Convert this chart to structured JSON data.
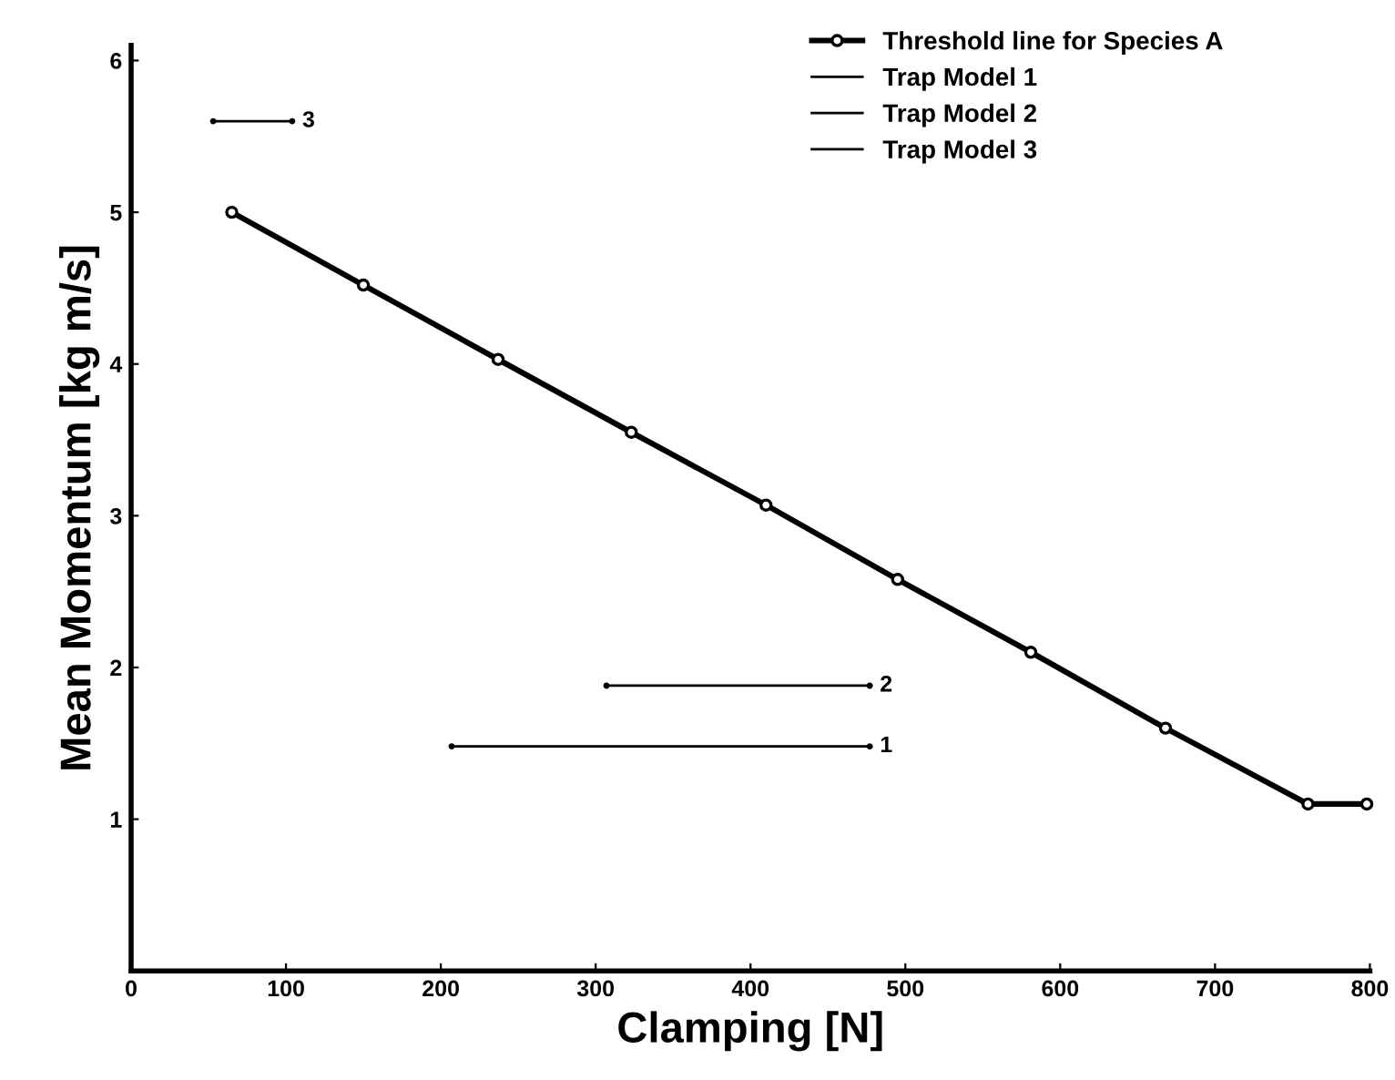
{
  "chart_data": {
    "type": "line",
    "xlabel": "Clamping [N]",
    "ylabel": "Mean Momentum [kg m/s]",
    "series": [
      {
        "name": "Threshold line for Species A",
        "color": "#000000",
        "marker": "circle",
        "x": [
          65,
          150,
          237,
          323,
          410,
          495,
          581,
          668,
          760,
          798
        ],
        "values": [
          5.0,
          4.52,
          4.03,
          3.55,
          3.07,
          2.58,
          2.1,
          1.6,
          1.1,
          1.1
        ]
      },
      {
        "name": "Trap Model 1",
        "color": "#000000",
        "marker": "none",
        "x": [
          207,
          477
        ],
        "values": [
          1.48,
          1.48
        ]
      },
      {
        "name": "Trap Model 2",
        "color": "#000000",
        "marker": "none",
        "x": [
          307,
          477
        ],
        "values": [
          1.88,
          1.88
        ]
      },
      {
        "name": "Trap Model 3",
        "color": "#000000",
        "marker": "none",
        "x": [
          53,
          104
        ],
        "values": [
          5.6,
          5.6
        ]
      }
    ],
    "annotations": [
      "1",
      "2",
      "3"
    ],
    "xlim": [
      0,
      800
    ],
    "xticks": [
      0,
      100,
      200,
      300,
      400,
      500,
      600,
      700,
      800
    ],
    "ylim": [
      0,
      6.1
    ],
    "yticks": [
      1,
      2,
      3,
      4,
      5,
      6
    ],
    "legend": "top right"
  }
}
